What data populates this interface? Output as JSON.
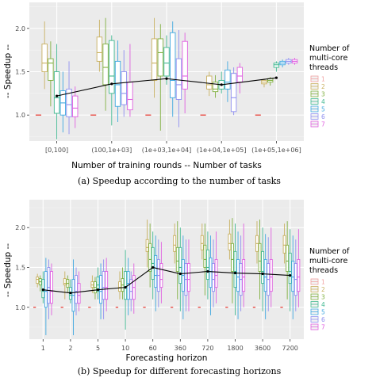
{
  "colors": {
    "panel_bg": "#ebebeb",
    "grid_major": "#ffffff",
    "grid_minor": "#f4f4f4",
    "baseline": "#e8332a",
    "mean_line": "#000000",
    "threads": [
      "#f0a0a0",
      "#c8b060",
      "#80b040",
      "#40b890",
      "#40a8e0",
      "#9090f0",
      "#e060e0"
    ]
  },
  "legend": {
    "title_lines": [
      "Number of",
      "multi-core",
      "threads"
    ],
    "labels": [
      "1",
      "2",
      "3",
      "4",
      "5",
      "6",
      "7"
    ]
  },
  "chart_data": [
    {
      "type": "box",
      "caption": "(a) Speedup according to the number of tasks",
      "xlabel": "Number of training rounds -- Number of tasks",
      "ylabel": "-- Speedup --",
      "ylim": [
        0.7,
        2.3
      ],
      "yticks": [
        1.0,
        1.5,
        2.0
      ],
      "ytick_labels": [
        "1.0",
        "1.5",
        "2.0"
      ],
      "categories": [
        "[0,100]",
        "(100,1e+03]",
        "(1e+03,1e+04]",
        "(1e+04,1e+05]",
        "(1e+05,1e+06]"
      ],
      "mean_line": [
        1.22,
        1.36,
        1.42,
        1.35,
        1.43
      ],
      "baseline_value": 1.0,
      "boxes": [
        [
          {
            "min": 1.0,
            "q1": 1.0,
            "med": 1.0,
            "q3": 1.0,
            "max": 1.0
          },
          {
            "min": 1.3,
            "q1": 1.5,
            "med": 1.6,
            "q3": 1.82,
            "max": 2.08
          },
          {
            "min": 1.1,
            "q1": 1.4,
            "med": 1.6,
            "q3": 1.65,
            "max": 1.85
          },
          {
            "min": 0.72,
            "q1": 1.02,
            "med": 1.2,
            "q3": 1.5,
            "max": 1.82
          },
          {
            "min": 0.8,
            "q1": 1.0,
            "med": 1.14,
            "q3": 1.28,
            "max": 1.5
          },
          {
            "min": 0.78,
            "q1": 0.98,
            "med": 1.12,
            "q3": 1.3,
            "max": 1.62
          },
          {
            "min": 0.85,
            "q1": 0.98,
            "med": 1.08,
            "q3": 1.22,
            "max": 1.33
          }
        ],
        [
          {
            "min": 1.0,
            "q1": 1.0,
            "med": 1.0,
            "q3": 1.0,
            "max": 1.0
          },
          {
            "min": 1.5,
            "q1": 1.62,
            "med": 1.72,
            "q3": 1.9,
            "max": 2.1
          },
          {
            "min": 1.05,
            "q1": 1.35,
            "med": 1.55,
            "q3": 1.82,
            "max": 2.12
          },
          {
            "min": 0.88,
            "q1": 1.25,
            "med": 1.45,
            "q3": 1.86,
            "max": 1.92
          },
          {
            "min": 0.92,
            "q1": 1.1,
            "med": 1.35,
            "q3": 1.62,
            "max": 1.86
          },
          {
            "min": 0.98,
            "q1": 1.12,
            "med": 1.25,
            "q3": 1.5,
            "max": 1.75
          },
          {
            "min": 0.98,
            "q1": 1.06,
            "med": 1.18,
            "q3": 1.38,
            "max": 1.82
          }
        ],
        [
          {
            "min": 1.0,
            "q1": 1.0,
            "med": 1.0,
            "q3": 1.0,
            "max": 1.0
          },
          {
            "min": 1.2,
            "q1": 1.4,
            "med": 1.6,
            "q3": 1.88,
            "max": 2.12
          },
          {
            "min": 0.82,
            "q1": 1.45,
            "med": 1.72,
            "q3": 1.88,
            "max": 2.05
          },
          {
            "min": 1.35,
            "q1": 1.45,
            "med": 1.6,
            "q3": 1.78,
            "max": 1.92
          },
          {
            "min": 0.98,
            "q1": 1.2,
            "med": 1.4,
            "q3": 1.95,
            "max": 2.08
          },
          {
            "min": 0.86,
            "q1": 1.18,
            "med": 1.35,
            "q3": 1.65,
            "max": 1.98
          },
          {
            "min": 1.02,
            "q1": 1.3,
            "med": 1.45,
            "q3": 1.85,
            "max": 1.95
          }
        ],
        [
          {
            "min": 1.0,
            "q1": 1.0,
            "med": 1.0,
            "q3": 1.0,
            "max": 1.0
          },
          {
            "min": 1.22,
            "q1": 1.3,
            "med": 1.35,
            "q3": 1.45,
            "max": 1.5
          },
          {
            "min": 1.2,
            "q1": 1.27,
            "med": 1.3,
            "q3": 1.38,
            "max": 1.46
          },
          {
            "min": 1.25,
            "q1": 1.3,
            "med": 1.35,
            "q3": 1.4,
            "max": 1.5
          },
          {
            "min": 1.15,
            "q1": 1.3,
            "med": 1.38,
            "q3": 1.52,
            "max": 1.62
          },
          {
            "min": 1.0,
            "q1": 1.04,
            "med": 1.2,
            "q3": 1.48,
            "max": 1.55
          },
          {
            "min": 1.25,
            "q1": 1.38,
            "med": 1.45,
            "q3": 1.55,
            "max": 1.6
          }
        ],
        [
          {
            "min": 1.0,
            "q1": 1.0,
            "med": 1.0,
            "q3": 1.0,
            "max": 1.0
          },
          {
            "min": 1.32,
            "q1": 1.36,
            "med": 1.38,
            "q3": 1.4,
            "max": 1.42
          },
          {
            "min": 1.34,
            "q1": 1.38,
            "med": 1.4,
            "q3": 1.42,
            "max": 1.44
          },
          {
            "min": 1.5,
            "q1": 1.55,
            "med": 1.58,
            "q3": 1.6,
            "max": 1.62
          },
          {
            "min": 1.55,
            "q1": 1.58,
            "med": 1.6,
            "q3": 1.62,
            "max": 1.64
          },
          {
            "min": 1.58,
            "q1": 1.6,
            "med": 1.62,
            "q3": 1.64,
            "max": 1.66
          },
          {
            "min": 1.58,
            "q1": 1.6,
            "med": 1.62,
            "q3": 1.64,
            "max": 1.66
          }
        ]
      ]
    },
    {
      "type": "box",
      "caption": "(b) Speedup for different forecasting horizons",
      "xlabel": "Forecasting horizon",
      "ylabel": "-- Speedup --",
      "ylim": [
        0.6,
        2.35
      ],
      "yticks": [
        1.0,
        1.5,
        2.0
      ],
      "ytick_labels": [
        "1.0",
        "1.5",
        "2.0"
      ],
      "categories": [
        "1",
        "2",
        "5",
        "10",
        "60",
        "360",
        "720",
        "1800",
        "3600",
        "7200"
      ],
      "mean_line": [
        1.22,
        1.18,
        1.22,
        1.25,
        1.5,
        1.42,
        1.45,
        1.43,
        1.42,
        1.4
      ],
      "baseline_value": 1.0,
      "boxes": [
        [
          {
            "min": 1.0,
            "q1": 1.0,
            "med": 1.0,
            "q3": 1.0,
            "max": 1.0
          },
          {
            "min": 1.25,
            "q1": 1.3,
            "med": 1.35,
            "q3": 1.38,
            "max": 1.42
          },
          {
            "min": 1.2,
            "q1": 1.28,
            "med": 1.32,
            "q3": 1.36,
            "max": 1.4
          },
          {
            "min": 1.05,
            "q1": 1.12,
            "med": 1.2,
            "q3": 1.35,
            "max": 1.45
          },
          {
            "min": 0.65,
            "q1": 1.0,
            "med": 1.2,
            "q3": 1.45,
            "max": 1.62
          },
          {
            "min": 0.85,
            "q1": 1.05,
            "med": 1.25,
            "q3": 1.5,
            "max": 1.6
          },
          {
            "min": 0.9,
            "q1": 1.05,
            "med": 1.2,
            "q3": 1.45,
            "max": 1.55
          }
        ],
        [
          {
            "min": 1.0,
            "q1": 1.0,
            "med": 1.0,
            "q3": 1.0,
            "max": 1.0
          },
          {
            "min": 1.1,
            "q1": 1.28,
            "med": 1.3,
            "q3": 1.36,
            "max": 1.45
          },
          {
            "min": 1.18,
            "q1": 1.25,
            "med": 1.3,
            "q3": 1.35,
            "max": 1.4
          },
          {
            "min": 1.05,
            "q1": 1.1,
            "med": 1.15,
            "q3": 1.25,
            "max": 1.35
          },
          {
            "min": 0.65,
            "q1": 0.95,
            "med": 1.15,
            "q3": 1.35,
            "max": 1.6
          },
          {
            "min": 0.9,
            "q1": 1.05,
            "med": 1.2,
            "q3": 1.4,
            "max": 1.5
          },
          {
            "min": 0.95,
            "q1": 1.05,
            "med": 1.15,
            "q3": 1.3,
            "max": 1.45
          }
        ],
        [
          {
            "min": 1.0,
            "q1": 1.0,
            "med": 1.0,
            "q3": 1.0,
            "max": 1.0
          },
          {
            "min": 1.18,
            "q1": 1.25,
            "med": 1.28,
            "q3": 1.32,
            "max": 1.4
          },
          {
            "min": 1.1,
            "q1": 1.18,
            "med": 1.25,
            "q3": 1.32,
            "max": 1.38
          },
          {
            "min": 1.1,
            "q1": 1.2,
            "med": 1.28,
            "q3": 1.38,
            "max": 1.5
          },
          {
            "min": 0.85,
            "q1": 1.05,
            "med": 1.2,
            "q3": 1.4,
            "max": 1.55
          },
          {
            "min": 0.85,
            "q1": 1.1,
            "med": 1.25,
            "q3": 1.45,
            "max": 1.6
          },
          {
            "min": 0.95,
            "q1": 1.1,
            "med": 1.25,
            "q3": 1.45,
            "max": 1.62
          }
        ],
        [
          {
            "min": 1.0,
            "q1": 1.0,
            "med": 1.0,
            "q3": 1.0,
            "max": 1.0
          },
          {
            "min": 1.1,
            "q1": 1.2,
            "med": 1.25,
            "q3": 1.32,
            "max": 1.45
          },
          {
            "min": 1.1,
            "q1": 1.2,
            "med": 1.28,
            "q3": 1.36,
            "max": 1.5
          },
          {
            "min": 0.72,
            "q1": 1.1,
            "med": 1.25,
            "q3": 1.45,
            "max": 1.72
          },
          {
            "min": 0.9,
            "q1": 1.1,
            "med": 1.3,
            "q3": 1.45,
            "max": 1.62
          },
          {
            "min": 0.95,
            "q1": 1.1,
            "med": 1.2,
            "q3": 1.35,
            "max": 1.45
          },
          {
            "min": 0.92,
            "q1": 1.1,
            "med": 1.25,
            "q3": 1.4,
            "max": 1.55
          }
        ],
        [
          {
            "min": 1.0,
            "q1": 1.0,
            "med": 1.0,
            "q3": 1.0,
            "max": 1.0
          },
          {
            "min": 1.5,
            "q1": 1.7,
            "med": 1.75,
            "q3": 1.85,
            "max": 2.1
          },
          {
            "min": 1.25,
            "q1": 1.45,
            "med": 1.6,
            "q3": 1.8,
            "max": 2.05
          },
          {
            "min": 1.1,
            "q1": 1.35,
            "med": 1.55,
            "q3": 1.75,
            "max": 1.95
          },
          {
            "min": 0.95,
            "q1": 1.25,
            "med": 1.4,
            "q3": 1.65,
            "max": 1.9
          },
          {
            "min": 1.0,
            "q1": 1.2,
            "med": 1.4,
            "q3": 1.6,
            "max": 1.85
          },
          {
            "min": 1.05,
            "q1": 1.25,
            "med": 1.35,
            "q3": 1.55,
            "max": 1.82
          }
        ],
        [
          {
            "min": 1.0,
            "q1": 1.0,
            "med": 1.0,
            "q3": 1.0,
            "max": 1.0
          },
          {
            "min": 1.55,
            "q1": 1.7,
            "med": 1.78,
            "q3": 1.9,
            "max": 2.05
          },
          {
            "min": 1.1,
            "q1": 1.45,
            "med": 1.58,
            "q3": 1.75,
            "max": 2.08
          },
          {
            "min": 0.95,
            "q1": 1.3,
            "med": 1.5,
            "q3": 1.75,
            "max": 2.0
          },
          {
            "min": 0.85,
            "q1": 1.2,
            "med": 1.4,
            "q3": 1.6,
            "max": 1.9
          },
          {
            "min": 0.95,
            "q1": 1.15,
            "med": 1.35,
            "q3": 1.55,
            "max": 1.85
          },
          {
            "min": 0.95,
            "q1": 1.2,
            "med": 1.35,
            "q3": 1.55,
            "max": 1.85
          }
        ],
        [
          {
            "min": 1.0,
            "q1": 1.0,
            "med": 1.0,
            "q3": 1.0,
            "max": 1.0
          },
          {
            "min": 1.6,
            "q1": 1.72,
            "med": 1.8,
            "q3": 1.9,
            "max": 2.05
          },
          {
            "min": 1.15,
            "q1": 1.5,
            "med": 1.6,
            "q3": 1.78,
            "max": 2.05
          },
          {
            "min": 1.1,
            "q1": 1.35,
            "med": 1.5,
            "q3": 1.72,
            "max": 1.95
          },
          {
            "min": 0.9,
            "q1": 1.25,
            "med": 1.45,
            "q3": 1.62,
            "max": 1.9
          },
          {
            "min": 1.0,
            "q1": 1.2,
            "med": 1.35,
            "q3": 1.55,
            "max": 1.85
          },
          {
            "min": 1.05,
            "q1": 1.25,
            "med": 1.4,
            "q3": 1.6,
            "max": 1.95
          }
        ],
        [
          {
            "min": 1.0,
            "q1": 1.0,
            "med": 1.0,
            "q3": 1.0,
            "max": 1.0
          },
          {
            "min": 1.6,
            "q1": 1.72,
            "med": 1.8,
            "q3": 1.92,
            "max": 2.1
          },
          {
            "min": 1.05,
            "q1": 1.45,
            "med": 1.6,
            "q3": 1.8,
            "max": 2.12
          },
          {
            "min": 0.9,
            "q1": 1.25,
            "med": 1.45,
            "q3": 1.7,
            "max": 2.05
          },
          {
            "min": 0.85,
            "q1": 1.2,
            "med": 1.38,
            "q3": 1.6,
            "max": 1.95
          },
          {
            "min": 0.95,
            "q1": 1.15,
            "med": 1.35,
            "q3": 1.55,
            "max": 1.9
          },
          {
            "min": 1.0,
            "q1": 1.2,
            "med": 1.38,
            "q3": 1.6,
            "max": 2.05
          }
        ],
        [
          {
            "min": 1.0,
            "q1": 1.0,
            "med": 1.0,
            "q3": 1.0,
            "max": 1.0
          },
          {
            "min": 1.55,
            "q1": 1.7,
            "med": 1.8,
            "q3": 1.9,
            "max": 2.08
          },
          {
            "min": 1.1,
            "q1": 1.45,
            "med": 1.58,
            "q3": 1.8,
            "max": 2.1
          },
          {
            "min": 0.95,
            "q1": 1.3,
            "med": 1.45,
            "q3": 1.7,
            "max": 2.0
          },
          {
            "min": 0.85,
            "q1": 1.2,
            "med": 1.38,
            "q3": 1.6,
            "max": 1.92
          },
          {
            "min": 0.95,
            "q1": 1.15,
            "med": 1.35,
            "q3": 1.55,
            "max": 1.88
          },
          {
            "min": 1.0,
            "q1": 1.2,
            "med": 1.38,
            "q3": 1.6,
            "max": 2.0
          }
        ],
        [
          {
            "min": 1.0,
            "q1": 1.0,
            "med": 1.0,
            "q3": 1.0,
            "max": 1.0
          },
          {
            "min": 1.55,
            "q1": 1.68,
            "med": 1.78,
            "q3": 1.9,
            "max": 2.05
          },
          {
            "min": 1.1,
            "q1": 1.45,
            "med": 1.58,
            "q3": 1.78,
            "max": 2.08
          },
          {
            "min": 0.95,
            "q1": 1.3,
            "med": 1.45,
            "q3": 1.68,
            "max": 1.98
          },
          {
            "min": 0.85,
            "q1": 1.2,
            "med": 1.38,
            "q3": 1.58,
            "max": 1.9
          },
          {
            "min": 0.95,
            "q1": 1.15,
            "med": 1.35,
            "q3": 1.55,
            "max": 1.85
          },
          {
            "min": 1.0,
            "q1": 1.2,
            "med": 1.38,
            "q3": 1.6,
            "max": 1.98
          }
        ]
      ]
    }
  ]
}
